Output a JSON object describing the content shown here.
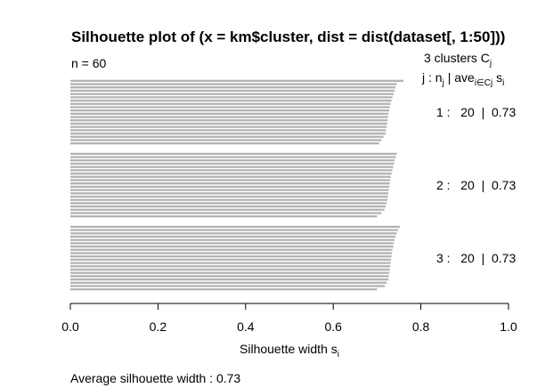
{
  "chart_data": {
    "type": "bar",
    "orientation": "horizontal",
    "title": "Silhouette plot of (x = km$cluster, dist = dist(dataset[, 1:50]))",
    "n_label": "n = 60",
    "clusters_header": "3  clusters  C",
    "clusters_header_sub": "j",
    "legend_header": {
      "j": "j :  n",
      "j_sub": "j",
      "mid": " | ave",
      "ave_sub": "i∈Cj",
      "s": "  s",
      "s_sub": "i"
    },
    "xlabel": "Silhouette width s",
    "xlabel_sub": "i",
    "xlim": [
      0,
      1
    ],
    "xticks": [
      "0.0",
      "0.2",
      "0.4",
      "0.6",
      "0.8",
      "1.0"
    ],
    "bar_color": "#b3b3b3",
    "footer": "Average silhouette width :  0.73",
    "clusters": [
      {
        "label": "1 :   20  |  0.73",
        "values": [
          0.76,
          0.745,
          0.742,
          0.74,
          0.738,
          0.735,
          0.733,
          0.731,
          0.729,
          0.728,
          0.726,
          0.725,
          0.724,
          0.723,
          0.722,
          0.72,
          0.72,
          0.715,
          0.71,
          0.705
        ]
      },
      {
        "label": "2 :   20  |  0.73",
        "values": [
          0.745,
          0.743,
          0.74,
          0.739,
          0.737,
          0.735,
          0.733,
          0.731,
          0.73,
          0.729,
          0.728,
          0.727,
          0.726,
          0.725,
          0.724,
          0.722,
          0.72,
          0.717,
          0.71,
          0.7
        ]
      },
      {
        "label": "3 :   20  |  0.73",
        "values": [
          0.752,
          0.748,
          0.745,
          0.742,
          0.74,
          0.738,
          0.737,
          0.735,
          0.734,
          0.733,
          0.732,
          0.731,
          0.73,
          0.729,
          0.728,
          0.727,
          0.726,
          0.722,
          0.718,
          0.7
        ]
      }
    ]
  }
}
